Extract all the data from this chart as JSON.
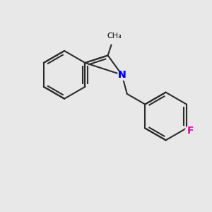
{
  "background_color": "#e8e8e8",
  "bond_color": "#2d2d2d",
  "bond_width": 1.5,
  "N_color": "#0000ee",
  "F_color": "#ee00aa",
  "label_fontsize": 10,
  "figsize": [
    3.0,
    3.0
  ],
  "dpi": 100,
  "xlim": [
    0,
    10
  ],
  "ylim": [
    0,
    10
  ]
}
